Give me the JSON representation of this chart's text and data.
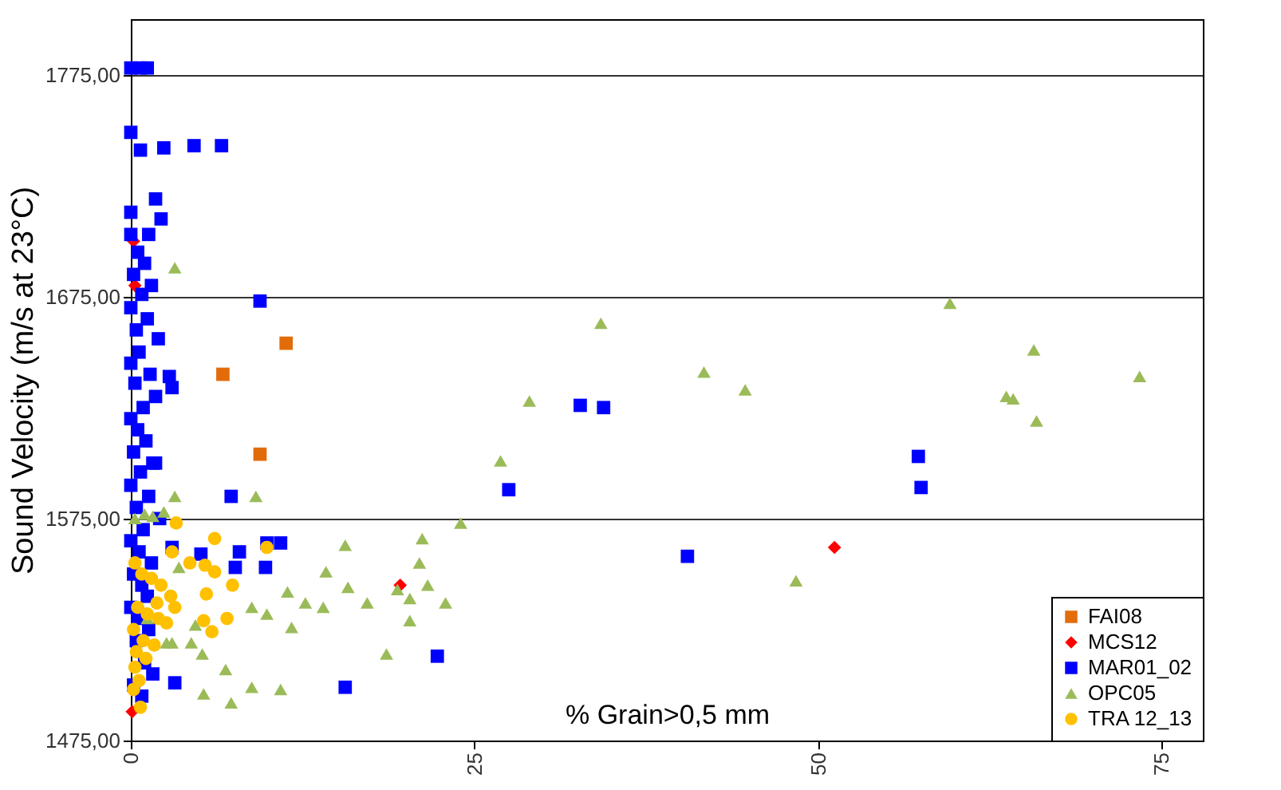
{
  "chart_data": {
    "type": "scatter",
    "xlabel": "% Grain>0,5 mm",
    "ylabel": "Sound Velocity (m/s at 23°C)",
    "xlim": [
      0,
      78
    ],
    "ylim": [
      1475,
      1800
    ],
    "xticks": [
      0,
      25,
      50,
      75
    ],
    "yticks": [
      {
        "value": 1475,
        "label": "1475,00"
      },
      {
        "value": 1575,
        "label": "1575,00"
      },
      {
        "value": 1675,
        "label": "1675,00"
      },
      {
        "value": 1775,
        "label": "1775,00"
      }
    ],
    "grid": "y",
    "legend": "bottom right",
    "series": [
      {
        "name": "FAI08",
        "color": "#e36c0a",
        "marker": "square",
        "x": [
          11.3,
          6.7,
          9.4
        ],
        "values": [
          1654,
          1640,
          1604
        ]
      },
      {
        "name": "MCS12",
        "color": "#ff0000",
        "marker": "diamond",
        "x": [
          51.2,
          19.6,
          0.2,
          0.3,
          0.1
        ],
        "values": [
          1562,
          1545,
          1700,
          1680,
          1488
        ]
      },
      {
        "name": "MAR01_02",
        "color": "#0000ff",
        "marker": "square",
        "x": [
          0,
          0.7,
          1.2,
          0,
          0.7,
          2.4,
          4.6,
          6.6,
          1.8,
          0,
          2.2,
          1.3,
          0,
          0.5,
          1,
          0.2,
          1.5,
          0.8,
          0,
          1.2,
          0.4,
          2,
          0.6,
          0,
          1.4,
          0.3,
          1.8,
          0.9,
          0,
          0.5,
          1.1,
          0.2,
          1.6,
          0.7,
          0,
          1.3,
          0.4,
          2.1,
          0.9,
          0,
          0.6,
          1.5,
          0.2,
          0.8,
          1.2,
          0,
          0.5,
          9.4,
          2.8,
          3,
          1.8,
          7.3,
          32.7,
          34.4,
          27.5,
          57.3,
          57.5,
          40.5,
          22.3,
          15.6,
          3.2,
          3,
          5.1,
          7.9,
          9.9,
          10.9,
          9.8,
          7.6,
          0.4,
          1,
          1.6,
          0.2,
          0.8,
          1.3
        ],
        "values": [
          1778,
          1778,
          1778,
          1749,
          1741,
          1742,
          1743,
          1743,
          1719,
          1713,
          1710,
          1703,
          1703,
          1695,
          1690,
          1685,
          1680,
          1676,
          1670,
          1665,
          1660,
          1656,
          1650,
          1645,
          1640,
          1636,
          1630,
          1625,
          1620,
          1615,
          1610,
          1605,
          1600,
          1596,
          1590,
          1585,
          1580,
          1575,
          1570,
          1565,
          1560,
          1555,
          1550,
          1545,
          1540,
          1535,
          1530,
          1673,
          1639,
          1634,
          1600,
          1585,
          1626,
          1625,
          1588,
          1603,
          1589,
          1558,
          1513,
          1499,
          1501,
          1562,
          1559,
          1560,
          1564,
          1564,
          1553,
          1553,
          1520,
          1510,
          1505,
          1500,
          1495,
          1525
        ]
      },
      {
        "name": "OPC05",
        "color": "#9bbb59",
        "marker": "triangle",
        "x": [
          3.2,
          59.6,
          34.2,
          41.7,
          44.7,
          65.7,
          63.7,
          64.2,
          65.9,
          73.4,
          29,
          26.9,
          24,
          21.2,
          21,
          21.6,
          19.4,
          22.9,
          20.3,
          20.3,
          18.6,
          17.2,
          15.8,
          15.6,
          14.2,
          14,
          12.7,
          11.7,
          11.4,
          48.4,
          9.1,
          3.2,
          2.4,
          1,
          0.3,
          1.6,
          5.3,
          7.3,
          5.2,
          3,
          4.4,
          8.8,
          9.9,
          8.8,
          10.9,
          6.9,
          2.6,
          3.5,
          4.7,
          1.2
        ],
        "values": [
          1688,
          1672,
          1663,
          1641,
          1633,
          1651,
          1630,
          1629,
          1619,
          1639,
          1628,
          1601,
          1573,
          1566,
          1555,
          1545,
          1543,
          1537,
          1539,
          1529,
          1514,
          1537,
          1544,
          1563,
          1551,
          1535,
          1537,
          1526,
          1542,
          1547,
          1585,
          1585,
          1578,
          1577,
          1575,
          1576,
          1496,
          1492,
          1514,
          1519,
          1519,
          1535,
          1532,
          1499,
          1498,
          1507,
          1519,
          1553,
          1527,
          1530
        ]
      },
      {
        "name": "TRA 12_13",
        "color": "#ffc000",
        "marker": "circle",
        "x": [
          3.3,
          6.1,
          9.9,
          3,
          4.3,
          5.4,
          6.1,
          7.4,
          5.5,
          7,
          5.3,
          5.9,
          0.3,
          0.8,
          1.5,
          2.2,
          2.9,
          0.5,
          1.2,
          2,
          2.6,
          0.2,
          0.9,
          1.7,
          0.4,
          1.1,
          0.3,
          0.6,
          1.9,
          3.2,
          0.2,
          0.7
        ],
        "values": [
          1573,
          1566,
          1562,
          1560,
          1555,
          1554,
          1551,
          1545,
          1541,
          1530,
          1529,
          1524,
          1555,
          1550,
          1548,
          1545,
          1540,
          1535,
          1532,
          1530,
          1528,
          1525,
          1520,
          1518,
          1515,
          1512,
          1508,
          1502,
          1537,
          1535,
          1498,
          1490
        ]
      }
    ]
  }
}
